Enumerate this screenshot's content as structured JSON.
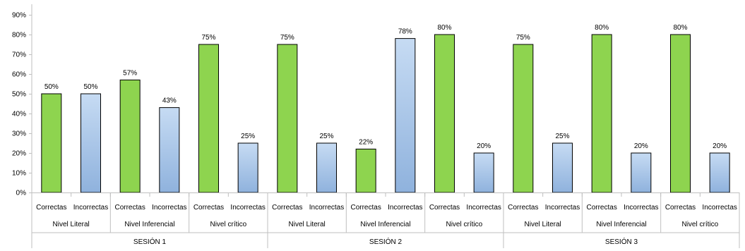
{
  "chart_data": {
    "type": "bar",
    "y_ticks": [
      "0%",
      "10%",
      "20%",
      "30%",
      "40%",
      "50%",
      "60%",
      "70%",
      "80%",
      "90%"
    ],
    "ylim": [
      0,
      90
    ],
    "grid": false,
    "colors": {
      "correctas": "#8ed44f",
      "incorrectas_top": "#c6dbf3",
      "incorrectas_bottom": "#8fb2dd",
      "bar_stroke": "#000000",
      "axis": "#bfbfbf"
    },
    "sessions": [
      {
        "label": "SESIÓN 1",
        "groups": [
          {
            "label": "Nivel Literal",
            "bars": [
              {
                "label": "Correctas",
                "value": 50,
                "text": "50%"
              },
              {
                "label": "Incorrectas",
                "value": 50,
                "text": "50%"
              }
            ]
          },
          {
            "label": "Nivel Inferencial",
            "bars": [
              {
                "label": "Correctas",
                "value": 57,
                "text": "57%"
              },
              {
                "label": "Incorrectas",
                "value": 43,
                "text": "43%"
              }
            ]
          },
          {
            "label": "Nivel crítico",
            "bars": [
              {
                "label": "Correctas",
                "value": 75,
                "text": "75%"
              },
              {
                "label": "Incorrectas",
                "value": 25,
                "text": "25%"
              }
            ]
          }
        ]
      },
      {
        "label": "SESIÓN 2",
        "groups": [
          {
            "label": "Nivel Literal",
            "bars": [
              {
                "label": "Correctas",
                "value": 75,
                "text": "75%"
              },
              {
                "label": "Incorrectas",
                "value": 25,
                "text": "25%"
              }
            ]
          },
          {
            "label": "Nivel Inferencial",
            "bars": [
              {
                "label": "Correctas",
                "value": 22,
                "text": "22%"
              },
              {
                "label": "Incorrectas",
                "value": 78,
                "text": "78%"
              }
            ]
          },
          {
            "label": "Nivel crítico",
            "bars": [
              {
                "label": "Correctas",
                "value": 80,
                "text": "80%"
              },
              {
                "label": "Incorrectas",
                "value": 20,
                "text": "20%"
              }
            ]
          }
        ]
      },
      {
        "label": "SESIÓN 3",
        "groups": [
          {
            "label": "Nivel Literal",
            "bars": [
              {
                "label": "Correctas",
                "value": 75,
                "text": "75%"
              },
              {
                "label": "Incorrectas",
                "value": 25,
                "text": "25%"
              }
            ]
          },
          {
            "label": "Nivel Inferencial",
            "bars": [
              {
                "label": "Correctas",
                "value": 80,
                "text": "80%"
              },
              {
                "label": "Incorrectas",
                "value": 20,
                "text": "20%"
              }
            ]
          },
          {
            "label": "Nivel crítico",
            "bars": [
              {
                "label": "Correctas",
                "value": 80,
                "text": "80%"
              },
              {
                "label": "Incorrectas",
                "value": 20,
                "text": "20%"
              }
            ]
          }
        ]
      }
    ]
  }
}
